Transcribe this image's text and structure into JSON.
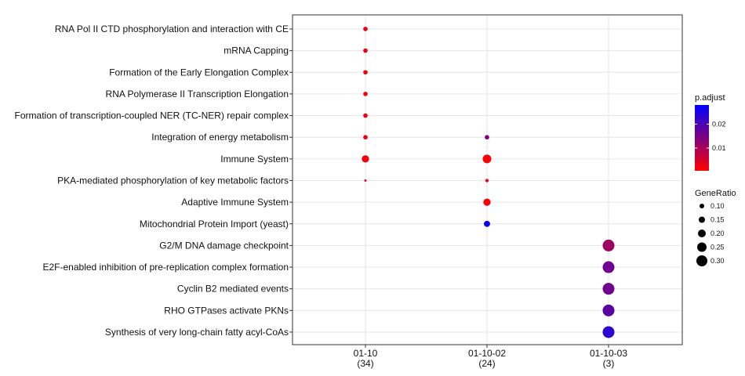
{
  "chart_data": {
    "type": "scatter",
    "categories_x": [
      {
        "label": "01-10",
        "count": "(34)"
      },
      {
        "label": "01-10-02",
        "count": "(24)"
      },
      {
        "label": "01-10-03",
        "count": "(3)"
      }
    ],
    "categories_y": [
      "RNA Pol II CTD phosphorylation and interaction with CE",
      "mRNA Capping",
      "Formation of the Early Elongation Complex",
      "RNA Polymerase II Transcription Elongation",
      "Formation of transcription-coupled NER (TC-NER) repair complex",
      "Integration of energy metabolism",
      "Immune System",
      "PKA-mediated phosphorylation of key metabolic factors",
      "Adaptive Immune System",
      "Mitochondrial Protein Import (yeast)",
      "G2/M DNA damage checkpoint",
      "E2F-enabled inhibition of pre-replication complex formation",
      "Cyclin B2 mediated events",
      "RHO GTPases activate PKNs",
      "Synthesis of very long-chain fatty acyl-CoAs"
    ],
    "points": [
      {
        "x": "01-10",
        "y": "RNA Pol II CTD phosphorylation and interaction with CE",
        "gene_ratio": 0.12,
        "p_adjust": 0.002
      },
      {
        "x": "01-10",
        "y": "mRNA Capping",
        "gene_ratio": 0.12,
        "p_adjust": 0.002
      },
      {
        "x": "01-10",
        "y": "Formation of the Early Elongation Complex",
        "gene_ratio": 0.12,
        "p_adjust": 0.002
      },
      {
        "x": "01-10",
        "y": "RNA Polymerase II Transcription Elongation",
        "gene_ratio": 0.12,
        "p_adjust": 0.002
      },
      {
        "x": "01-10",
        "y": "Formation of transcription-coupled NER (TC-NER) repair complex",
        "gene_ratio": 0.12,
        "p_adjust": 0.002
      },
      {
        "x": "01-10",
        "y": "Integration of energy metabolism",
        "gene_ratio": 0.12,
        "p_adjust": 0.002
      },
      {
        "x": "01-10",
        "y": "Immune System",
        "gene_ratio": 0.2,
        "p_adjust": 0.002
      },
      {
        "x": "01-10",
        "y": "PKA-mediated phosphorylation of key metabolic factors",
        "gene_ratio": 0.06,
        "p_adjust": 0.002
      },
      {
        "x": "01-10-02",
        "y": "Integration of energy metabolism",
        "gene_ratio": 0.12,
        "p_adjust": 0.014
      },
      {
        "x": "01-10-02",
        "y": "Immune System",
        "gene_ratio": 0.24,
        "p_adjust": 0.001
      },
      {
        "x": "01-10-02",
        "y": "PKA-mediated phosphorylation of key metabolic factors",
        "gene_ratio": 0.09,
        "p_adjust": 0.002
      },
      {
        "x": "01-10-02",
        "y": "Adaptive Immune System",
        "gene_ratio": 0.2,
        "p_adjust": 0.001
      },
      {
        "x": "01-10-02",
        "y": "Mitochondrial Protein Import (yeast)",
        "gene_ratio": 0.17,
        "p_adjust": 0.027
      },
      {
        "x": "01-10-03",
        "y": "G2/M DNA damage checkpoint",
        "gene_ratio": 0.33,
        "p_adjust": 0.011
      },
      {
        "x": "01-10-03",
        "y": "E2F-enabled inhibition of pre-replication complex formation",
        "gene_ratio": 0.33,
        "p_adjust": 0.016
      },
      {
        "x": "01-10-03",
        "y": "Cyclin B2 mediated events",
        "gene_ratio": 0.33,
        "p_adjust": 0.016
      },
      {
        "x": "01-10-03",
        "y": "RHO GTPases activate PKNs",
        "gene_ratio": 0.33,
        "p_adjust": 0.018
      },
      {
        "x": "01-10-03",
        "y": "Synthesis of very long-chain fatty acyl-CoAs",
        "gene_ratio": 0.33,
        "p_adjust": 0.023
      }
    ],
    "color_legend": {
      "title": "p.adjust",
      "ticks": [
        0.02,
        0.01
      ],
      "tick_labels": [
        "0.02",
        "0.01"
      ],
      "range": [
        0.0005,
        0.028
      ],
      "low_color": "#ff0000",
      "high_color": "#0000ff"
    },
    "size_legend": {
      "title": "GeneRatio",
      "values": [
        0.1,
        0.15,
        0.2,
        0.25,
        0.3
      ],
      "labels": [
        "0.10",
        "0.15",
        "0.20",
        "0.25",
        "0.30"
      ]
    },
    "grid": true,
    "legend_position": "right"
  }
}
